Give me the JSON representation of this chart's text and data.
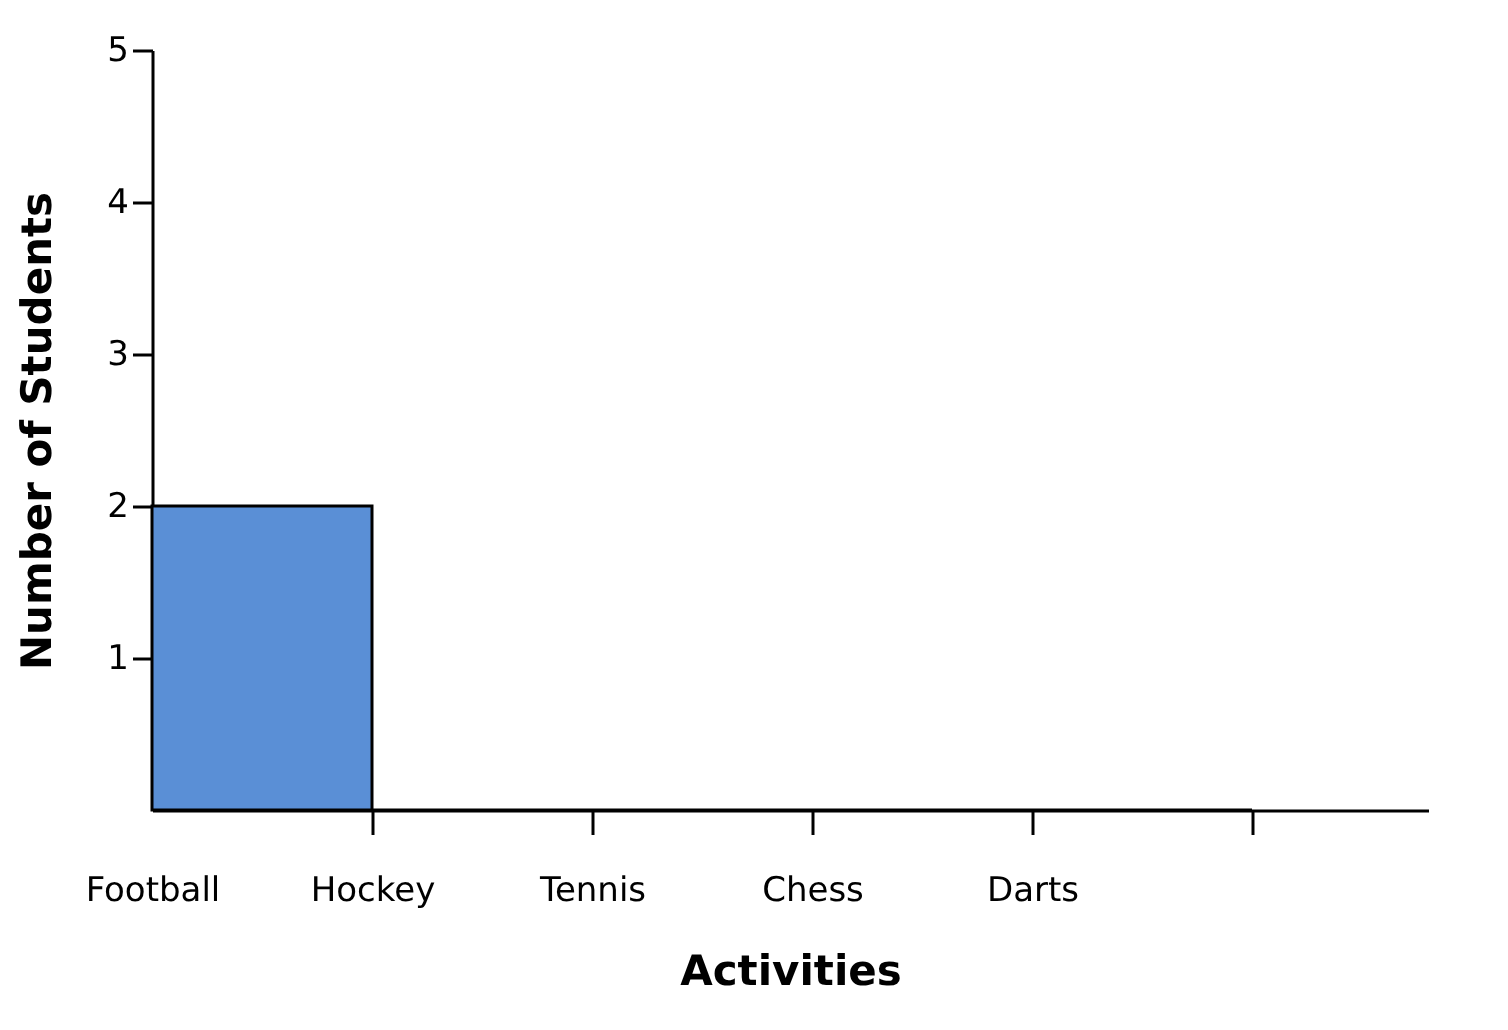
{
  "chart_data": {
    "type": "bar",
    "xlabel": "Activities",
    "ylabel": "Number of Students",
    "categories": [
      "Football",
      "Hockey",
      "Tennis",
      "Chess",
      "Darts"
    ],
    "values": [
      2,
      0,
      0,
      0,
      0
    ],
    "color": "#5a8fd6",
    "ylim": [
      0,
      5
    ],
    "yticks": [
      1,
      2,
      3,
      4,
      5
    ],
    "grid": false
  }
}
